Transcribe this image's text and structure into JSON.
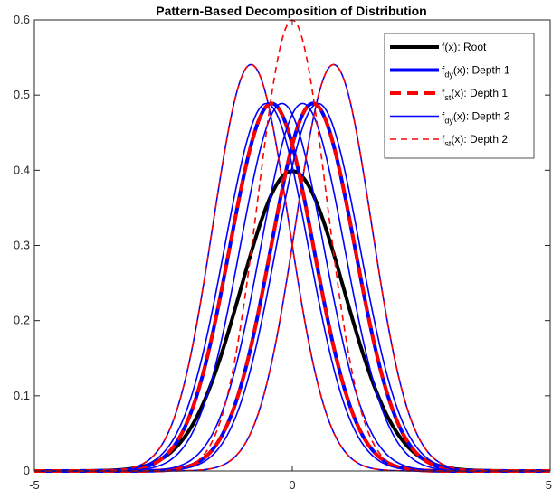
{
  "chart_data": {
    "type": "line",
    "title": "Pattern-Based Decomposition of Distribution",
    "xlabel": "",
    "ylabel": "",
    "xlim": [
      -5,
      5
    ],
    "ylim": [
      0,
      0.6
    ],
    "x_ticks": [
      "-5",
      "0",
      "5"
    ],
    "y_ticks": [
      "0",
      "0.1",
      "0.2",
      "0.3",
      "0.4",
      "0.5",
      "0.6"
    ],
    "grid": false,
    "legend_position": "top-right",
    "series": [
      {
        "name": "f(x): Root",
        "legend": {
          "base": "f(x): Root",
          "sub": ""
        },
        "style": "solid",
        "width": 4,
        "color": "#000000",
        "curves": [
          {
            "mean": 0,
            "sigma": 1.0
          }
        ]
      },
      {
        "name": "f_dy(x): Depth 1",
        "legend": {
          "base": "f",
          "sub": "dy",
          "rest": "(x): Depth 1"
        },
        "style": "solid",
        "width": 4,
        "color": "#0000ff",
        "curves": [
          {
            "mean": -0.4,
            "sigma": 0.816
          },
          {
            "mean": 0.4,
            "sigma": 0.816
          }
        ]
      },
      {
        "name": "f_st(x): Depth 1",
        "legend": {
          "base": "f",
          "sub": "st",
          "rest": "(x): Depth 1"
        },
        "style": "dashed",
        "width": 4,
        "color": "#ff0000",
        "curves": [
          {
            "mean": -0.4,
            "sigma": 0.816
          },
          {
            "mean": 0.4,
            "sigma": 0.816
          }
        ]
      },
      {
        "name": "f_dy(x): Depth 2",
        "legend": {
          "base": "f",
          "sub": "dy",
          "rest": "(x): Depth 2"
        },
        "style": "solid",
        "width": 1.6,
        "color": "#0000ff",
        "curves": [
          {
            "mean": -0.8,
            "sigma": 0.738
          },
          {
            "mean": 0.8,
            "sigma": 0.738
          },
          {
            "mean": -0.2,
            "sigma": 0.816
          },
          {
            "mean": 0.2,
            "sigma": 0.816
          },
          {
            "mean": -0.5,
            "sigma": 0.816
          },
          {
            "mean": 0.5,
            "sigma": 0.816
          }
        ]
      },
      {
        "name": "f_st(x): Depth 2",
        "legend": {
          "base": "f",
          "sub": "st",
          "rest": "(x): Depth 2"
        },
        "style": "dashed",
        "width": 1.6,
        "color": "#ff0000",
        "curves": [
          {
            "mean": -0.8,
            "sigma": 0.738
          },
          {
            "mean": 0.8,
            "sigma": 0.738
          },
          {
            "mean": 0,
            "sigma": 0.665
          }
        ]
      }
    ]
  }
}
